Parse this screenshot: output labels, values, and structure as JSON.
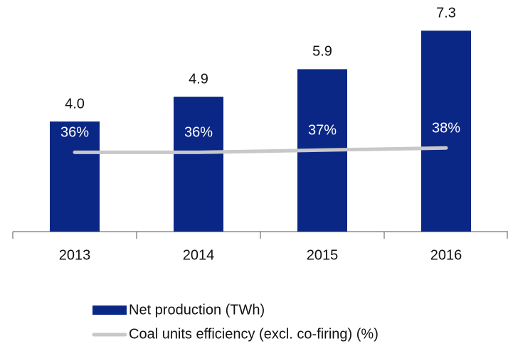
{
  "chart_data": {
    "type": "bar",
    "categories": [
      "2013",
      "2014",
      "2015",
      "2016"
    ],
    "ylim": [
      0,
      8
    ],
    "y2lim": [
      0,
      100
    ],
    "series": [
      {
        "name": "Net production (TWh)",
        "color": "#0b2786",
        "values": [
          4.0,
          4.9,
          5.9,
          7.3
        ],
        "value_labels": [
          "4.0",
          "4.9",
          "5.9",
          "7.3"
        ]
      },
      {
        "name": "Coal units efficiency (excl. co-firing) (%)",
        "color": "#c8c8c8",
        "axis": "y2",
        "type": "line",
        "values": [
          36,
          36,
          37,
          38
        ],
        "value_labels": [
          "36%",
          "36%",
          "37%",
          "38%"
        ]
      }
    ]
  }
}
